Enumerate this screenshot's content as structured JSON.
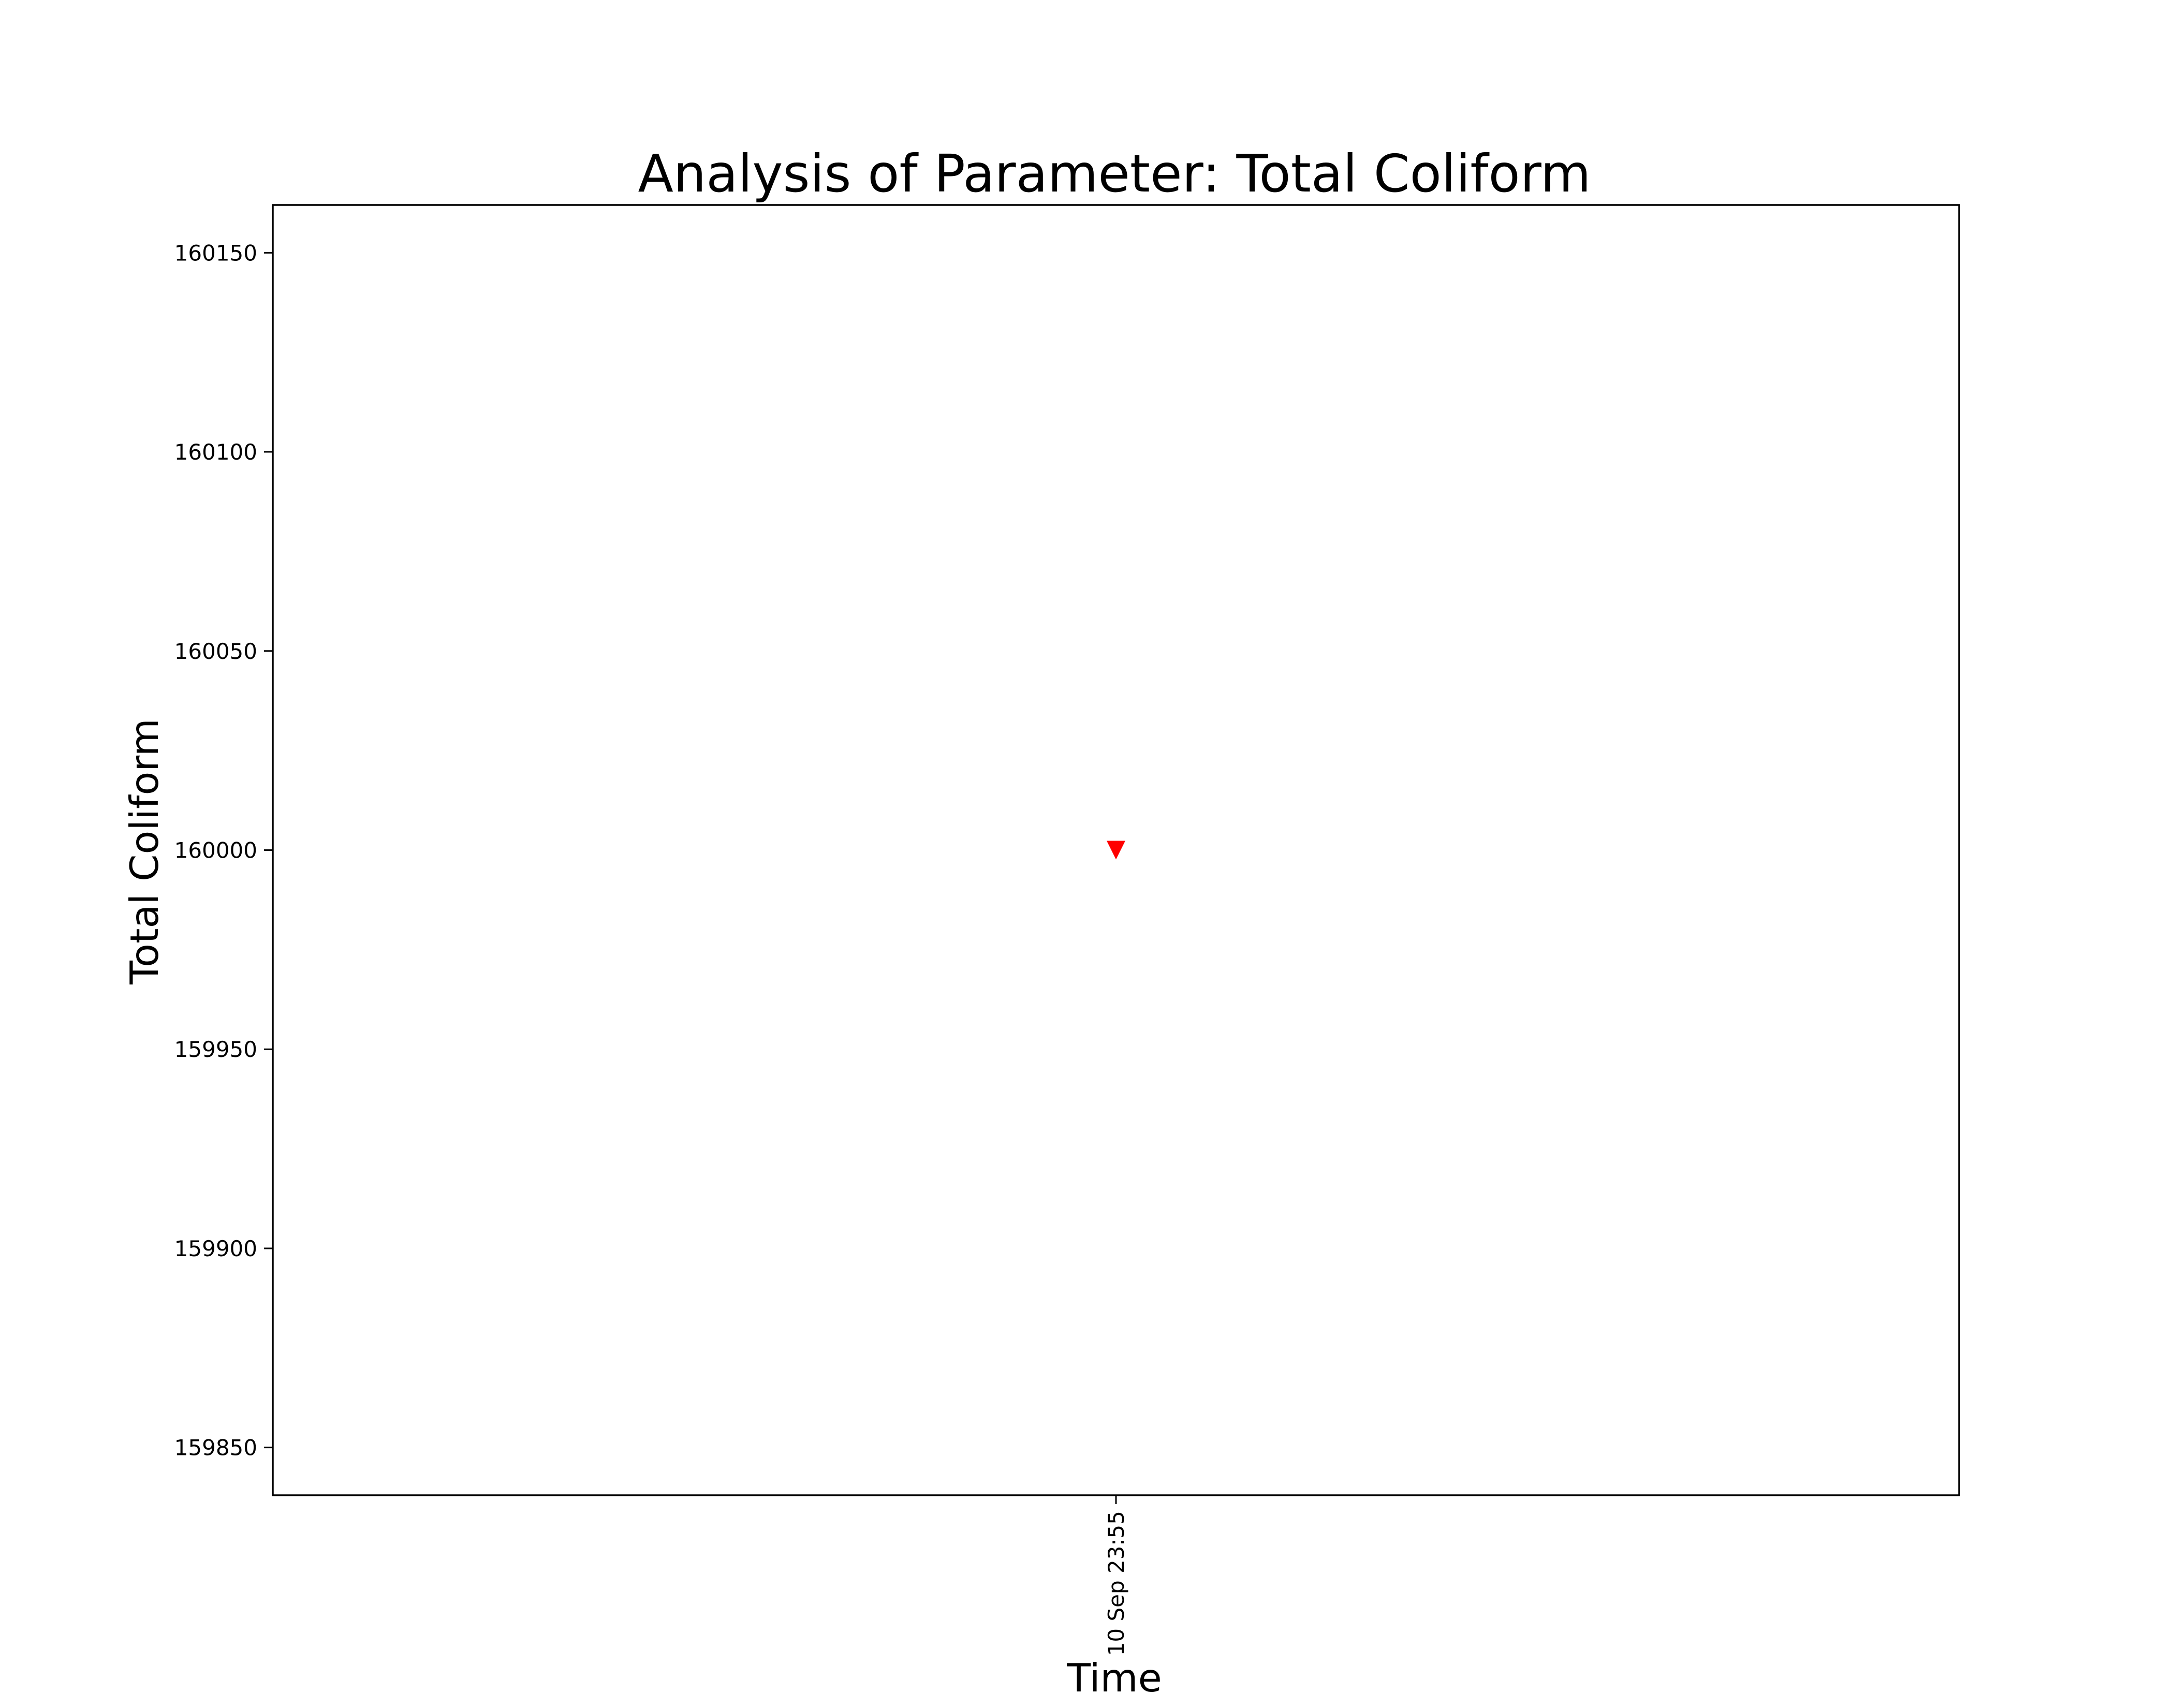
{
  "chart_data": {
    "type": "scatter",
    "title": "Analysis of Parameter: Total Coliform",
    "xlabel": "Time",
    "ylabel": "Total Coliform",
    "x_ticks": [
      "10 Sep 23:55"
    ],
    "y_ticks": [
      159850,
      159900,
      159950,
      160000,
      160050,
      160100,
      160150
    ],
    "ylim": [
      159838,
      160162
    ],
    "grid": false,
    "marker": "triangle-down",
    "series": [
      {
        "color": "#ff0000",
        "points": [
          {
            "x": "10 Sep 23:55",
            "y": 160000
          }
        ]
      }
    ]
  }
}
